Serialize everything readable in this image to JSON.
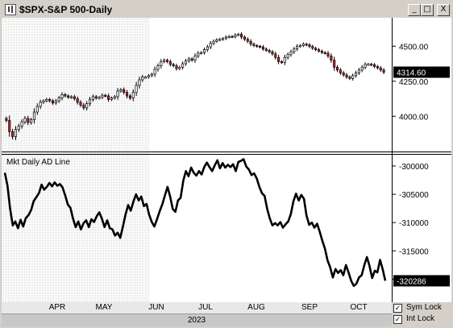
{
  "window": {
    "title": "$SPX-S&P 500-Daily",
    "buttons": {
      "minimize": "_",
      "maximize": "□",
      "close": "X"
    }
  },
  "chart_data": [
    {
      "type": "candlestick",
      "title": "",
      "ylabel": "",
      "ylim": [
        3760,
        4680
      ],
      "yticks": [
        4000,
        4250,
        4500
      ],
      "ytick_labels": [
        "4000.00",
        "4250.00",
        "4500.00"
      ],
      "last_value": 4314.6,
      "last_value_label": "4314.60",
      "colors": {
        "up": "#ffffff",
        "down": "#cc2222",
        "outline": "#000000"
      },
      "closes": [
        3970,
        3890,
        3855,
        3905,
        3930,
        3960,
        3985,
        3955,
        3975,
        4030,
        4070,
        4100,
        4110,
        4120,
        4110,
        4095,
        4110,
        4130,
        4155,
        4145,
        4135,
        4140,
        4125,
        4100,
        4080,
        4060,
        4090,
        4120,
        4140,
        4130,
        4135,
        4150,
        4145,
        4120,
        4130,
        4140,
        4180,
        4190,
        4170,
        4145,
        4130,
        4170,
        4220,
        4260,
        4280,
        4280,
        4290,
        4300,
        4335,
        4360,
        4390,
        4400,
        4390,
        4370,
        4360,
        4340,
        4350,
        4375,
        4395,
        4410,
        4400,
        4430,
        4450,
        4455,
        4475,
        4495,
        4520,
        4535,
        4545,
        4550,
        4555,
        4565,
        4570,
        4568,
        4580,
        4585,
        4565,
        4550,
        4535,
        4515,
        4505,
        4500,
        4495,
        4480,
        4470,
        4460,
        4445,
        4420,
        4390,
        4385,
        4420,
        4440,
        4460,
        4480,
        4500,
        4505,
        4515,
        4510,
        4498,
        4485,
        4475,
        4465,
        4455,
        4450,
        4430,
        4400,
        4350,
        4330,
        4310,
        4295,
        4280,
        4270,
        4290,
        4310,
        4330,
        4350,
        4370,
        4372,
        4368,
        4355,
        4345,
        4330,
        4314.6
      ]
    },
    {
      "type": "line",
      "title": "Mkt Daily AD Line",
      "ylabel": "",
      "ylim": [
        -323500,
        -298300
      ],
      "yticks": [
        -320000,
        -315000,
        -310000,
        -305000,
        -300000
      ],
      "ytick_labels": [
        "-320000",
        "-315000",
        "-310000",
        "-305000",
        "-300000"
      ],
      "last_value": -320286,
      "last_value_label": "-320286",
      "color": "#000000",
      "values": [
        -301200,
        -303500,
        -307500,
        -310500,
        -309800,
        -311000,
        -309500,
        -310700,
        -309200,
        -308700,
        -307800,
        -306200,
        -305500,
        -304800,
        -303300,
        -304200,
        -303700,
        -303000,
        -303600,
        -302900,
        -303500,
        -303200,
        -303800,
        -305200,
        -306800,
        -307400,
        -309300,
        -310800,
        -309800,
        -311200,
        -310100,
        -309600,
        -310800,
        -309400,
        -309900,
        -308900,
        -308200,
        -309300,
        -310800,
        -309600,
        -311000,
        -311200,
        -312300,
        -311800,
        -312700,
        -310700,
        -308600,
        -306900,
        -307900,
        -306300,
        -305000,
        -306100,
        -305400,
        -307100,
        -306700,
        -308600,
        -309900,
        -310700,
        -309400,
        -308000,
        -306800,
        -305200,
        -303700,
        -305400,
        -307600,
        -308100,
        -306100,
        -305600,
        -302600,
        -300900,
        -301800,
        -300300,
        -301200,
        -301700,
        -300900,
        -301500,
        -300200,
        -299400,
        -300200,
        -300900,
        -299900,
        -299000,
        -300400,
        -299500,
        -300300,
        -299800,
        -300200,
        -299700,
        -300900,
        -299300,
        -299100,
        -298800,
        -300100,
        -300600,
        -301600,
        -301300,
        -302200,
        -303700,
        -304800,
        -305300,
        -307600,
        -309300,
        -310500,
        -310100,
        -310500,
        -309900,
        -310900,
        -310300,
        -309800,
        -308500,
        -306200,
        -304900,
        -306100,
        -305100,
        -305800,
        -308800,
        -310400,
        -310000,
        -310900,
        -310200,
        -311600,
        -313200,
        -314600,
        -316700,
        -317900,
        -319700,
        -318200,
        -318900,
        -318400,
        -319300,
        -317500,
        -318800,
        -320300,
        -321200,
        -320800,
        -319700,
        -319300,
        -317500,
        -316100,
        -317700,
        -319800,
        -318500,
        -318800,
        -316600,
        -318200,
        -320286
      ]
    }
  ],
  "time_axis": {
    "months": [
      "APR",
      "MAY",
      "JUN",
      "JUL",
      "AUG",
      "SEP",
      "OCT"
    ],
    "year": "2023"
  },
  "options": {
    "sym_lock": {
      "label": "Sym Lock",
      "checked": true,
      "mark": "✓"
    },
    "int_lock": {
      "label": "Int Lock",
      "checked": true,
      "mark": "✓"
    }
  }
}
